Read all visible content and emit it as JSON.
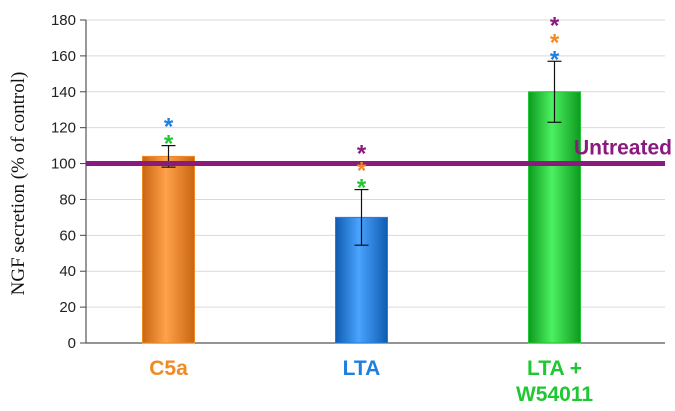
{
  "chart_data": {
    "type": "bar",
    "title": "",
    "xlabel": "",
    "ylabel": "NGF secretion (% of control)",
    "ylim": [
      0,
      180
    ],
    "yticks": [
      0,
      20,
      40,
      60,
      80,
      100,
      120,
      140,
      160,
      180
    ],
    "grid": true,
    "categories": [
      {
        "lines": [
          "C5a"
        ],
        "color": "#f08a24"
      },
      {
        "lines": [
          "LTA"
        ],
        "color": "#1f7fe0"
      },
      {
        "lines": [
          "LTA +",
          "W54011"
        ],
        "color": "#1fc832"
      }
    ],
    "values": [
      104,
      70,
      140
    ],
    "errors": [
      6,
      15.5,
      17
    ],
    "bar_colors": [
      "#f08a24",
      "#1f7fe0",
      "#1fc832"
    ],
    "reference_line": {
      "label": "Untreated",
      "value": 100,
      "color": "#8b1a7e"
    },
    "significance": [
      {
        "category": 0,
        "stars": [
          {
            "symbol": "*",
            "color": "#1f7fe0"
          },
          {
            "symbol": "*",
            "color": "#1fc832"
          }
        ]
      },
      {
        "category": 1,
        "stars": [
          {
            "symbol": "*",
            "color": "#8b1a7e"
          },
          {
            "symbol": "*",
            "color": "#f08a24"
          },
          {
            "symbol": "*",
            "color": "#1fc832"
          }
        ]
      },
      {
        "category": 2,
        "stars": [
          {
            "symbol": "*",
            "color": "#8b1a7e"
          },
          {
            "symbol": "*",
            "color": "#f08a24"
          },
          {
            "symbol": "*",
            "color": "#1f7fe0"
          }
        ]
      }
    ]
  }
}
